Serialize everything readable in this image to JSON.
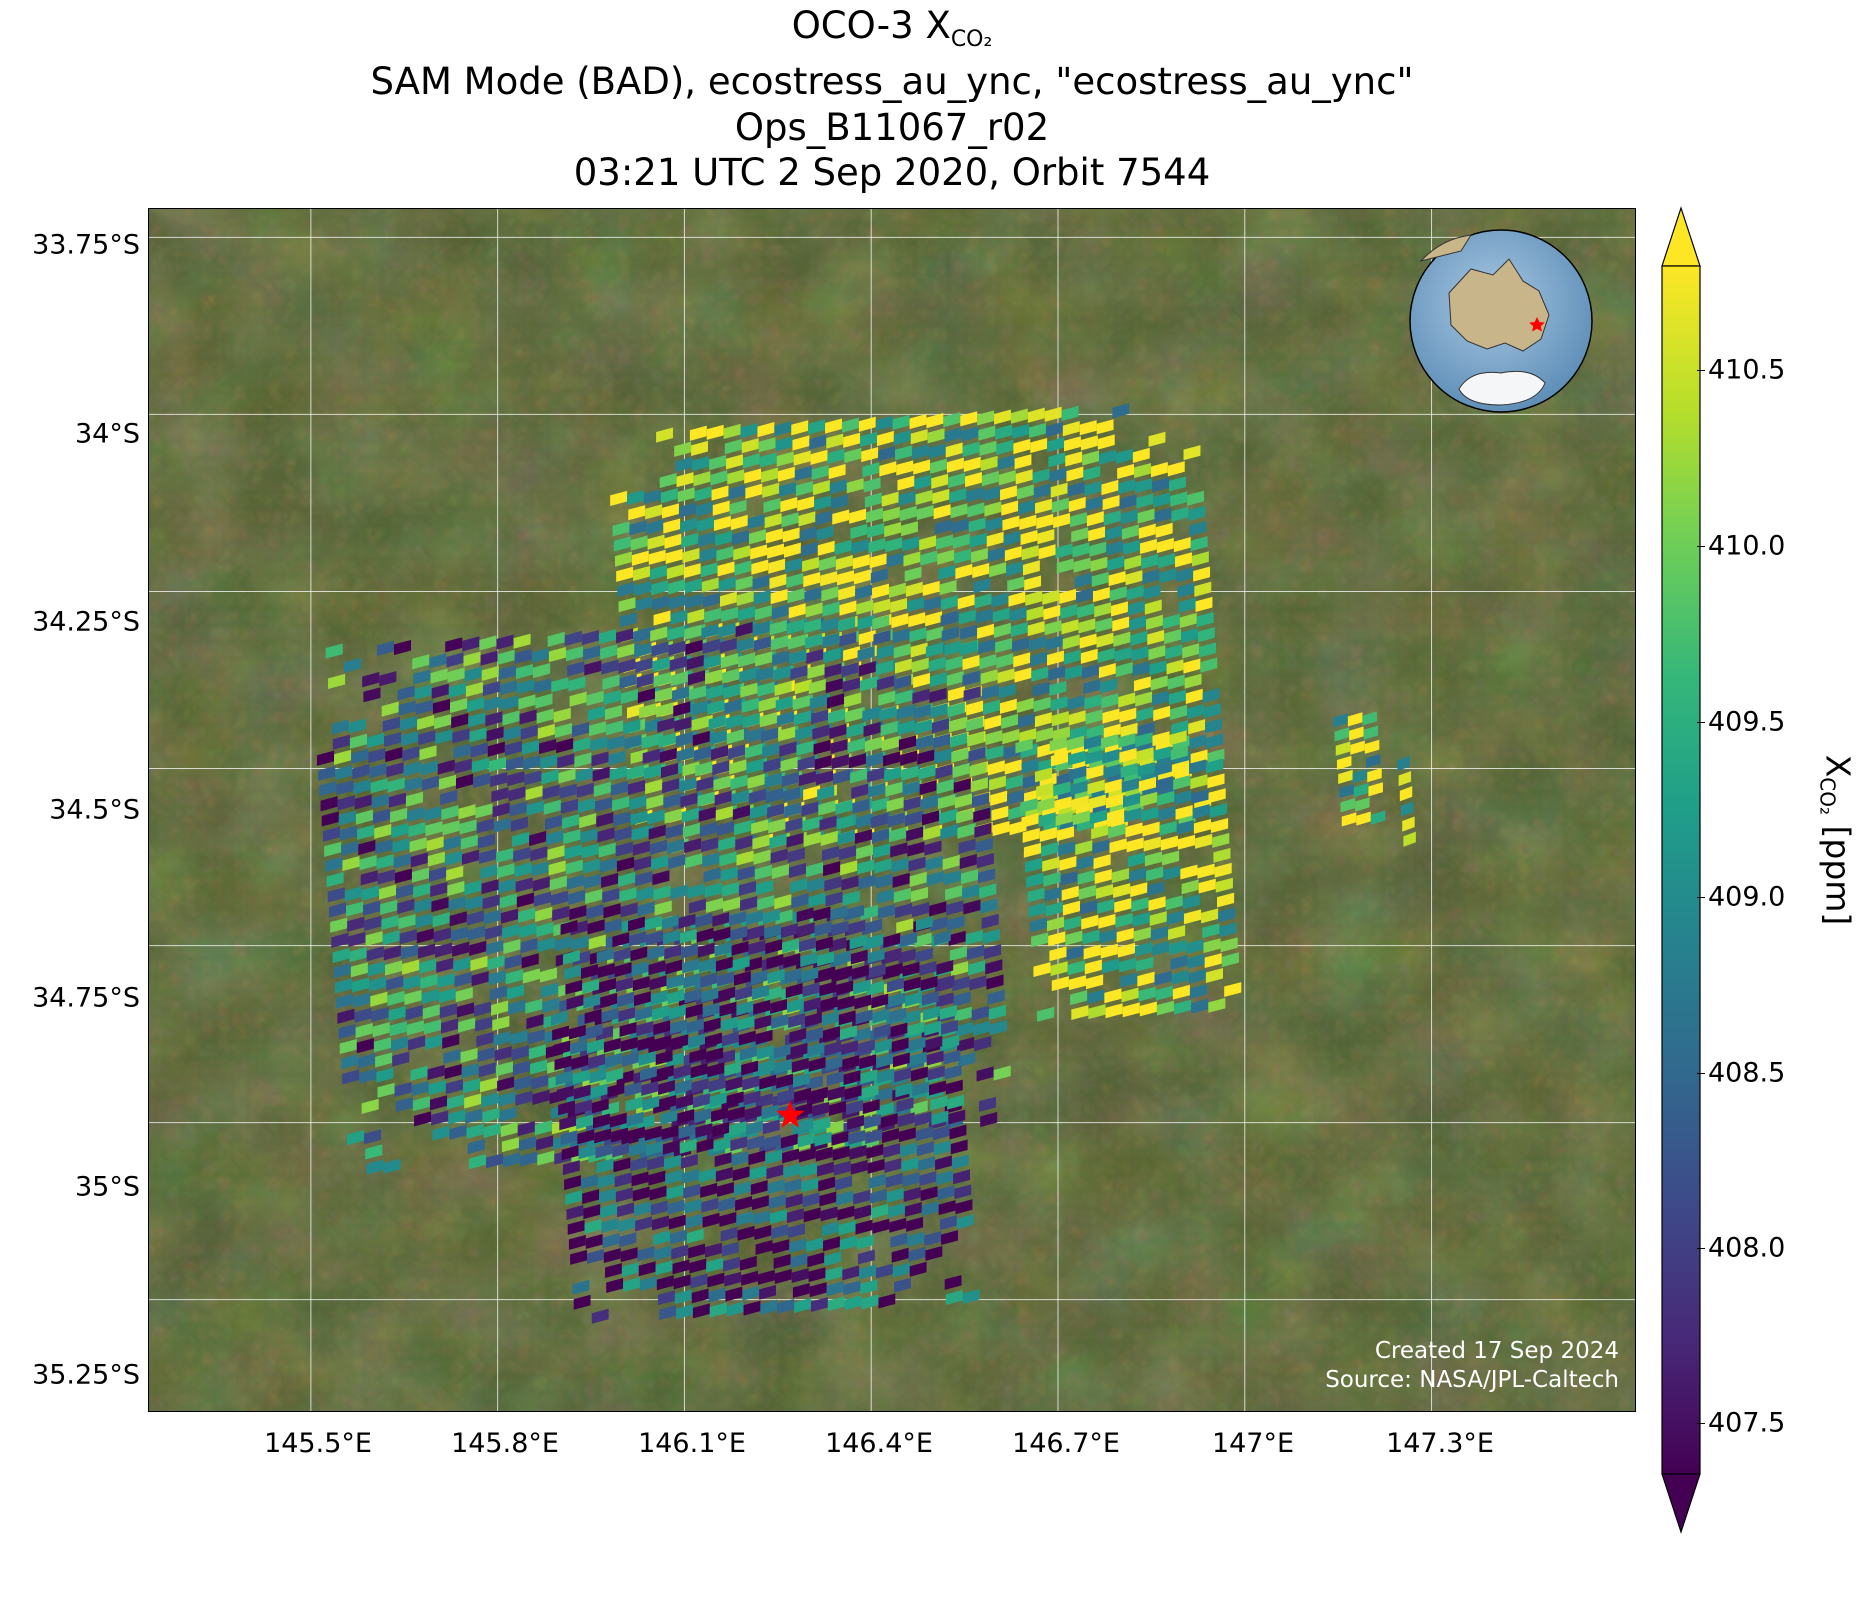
{
  "title": {
    "line1_prefix": "OCO-3 X",
    "line1_sub": "CO₂",
    "line2": "SAM Mode (BAD), ecostress_au_ync, \"ecostress_au_ync\"",
    "line3": "Ops_B11067_r02",
    "line4": "03:21 UTC 2 Sep 2020, Orbit 7544"
  },
  "map": {
    "lat_ticks": [
      "33.75°S",
      "34°S",
      "34.25°S",
      "34.5°S",
      "34.75°S",
      "35°S",
      "35.25°S"
    ],
    "lon_ticks": [
      "145.5°E",
      "145.8°E",
      "146.1°E",
      "146.4°E",
      "146.7°E",
      "147°E",
      "147.3°E"
    ],
    "lat_values": [
      -33.75,
      -34.0,
      -34.25,
      -34.5,
      -34.75,
      -35.0,
      -35.25
    ],
    "lon_values": [
      145.5,
      145.8,
      146.1,
      146.4,
      146.7,
      147.0,
      147.3
    ],
    "extent": {
      "lon_min": 145.24,
      "lon_max": 147.63,
      "lat_min": -35.41,
      "lat_max": -33.71
    },
    "target_marker": {
      "lon": 146.27,
      "lat": -34.99,
      "symbol": "star",
      "color": "#ff0000"
    },
    "inset_globe": {
      "description": "orthographic globe centred on Australia",
      "marker_color": "#ff0000"
    },
    "grid": true,
    "basemap": "satellite imagery"
  },
  "chart_data": {
    "type": "heatmap",
    "quantity": "XCO2",
    "colormap": "viridis",
    "range": [
      407.25,
      410.85
    ],
    "extend": "both",
    "swaths": [
      {
        "lat_top": -34.0,
        "lat_bottom": -34.6,
        "lon_left": 146.0,
        "lon_right": 146.95,
        "dominant_level": "high"
      },
      {
        "lat_top": -34.45,
        "lat_bottom": -34.85,
        "lon_left": 146.65,
        "lon_right": 146.98,
        "dominant_level": "high"
      },
      {
        "lat_top": -34.3,
        "lat_bottom": -35.05,
        "lon_left": 145.53,
        "lon_right": 146.6,
        "dominant_level": "mixed"
      },
      {
        "lat_top": -34.7,
        "lat_bottom": -35.27,
        "lon_left": 145.9,
        "lon_right": 146.55,
        "dominant_level": "low"
      },
      {
        "lat_top": -34.42,
        "lat_bottom": -34.58,
        "lon_left": 147.15,
        "lon_right": 147.22,
        "dominant_level": "high"
      },
      {
        "lat_top": -34.46,
        "lat_bottom": -34.61,
        "lon_left": 147.25,
        "lon_right": 147.27,
        "dominant_level": "high"
      }
    ]
  },
  "colorbar": {
    "label_prefix": "X",
    "label_sub": "CO₂",
    "label_suffix": " [ppm]",
    "ticks": [
      "410.5",
      "410.0",
      "409.5",
      "409.0",
      "408.5",
      "408.0",
      "407.5"
    ],
    "tick_values": [
      410.5,
      410.0,
      409.5,
      409.0,
      408.5,
      408.0,
      407.5
    ],
    "colors": [
      "#440154",
      "#482878",
      "#3e4989",
      "#31688e",
      "#26828e",
      "#1f9e89",
      "#35b779",
      "#6ece58",
      "#b5de2b",
      "#fde725"
    ]
  },
  "credits": {
    "created": "Created 17 Sep 2024",
    "source": "Source: NASA/JPL-Caltech"
  }
}
